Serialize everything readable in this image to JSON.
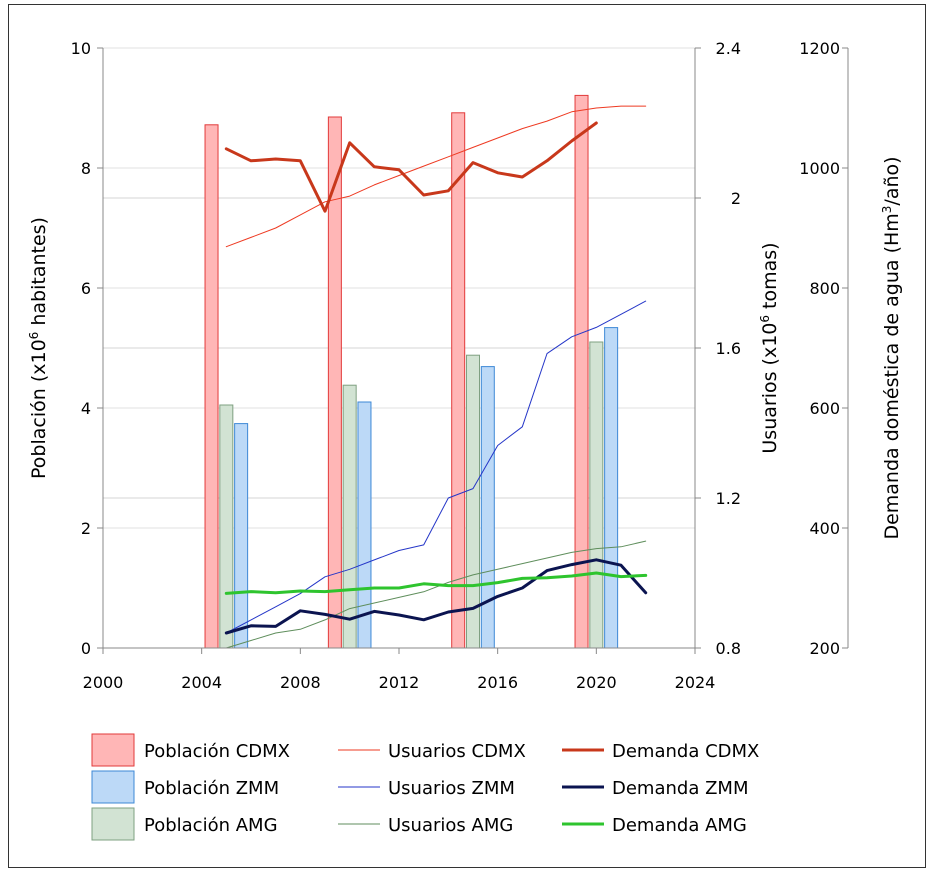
{
  "chart_data": {
    "type": "bar+line",
    "title": "",
    "xlabel": "",
    "x_ticks": [
      "2000",
      "2004",
      "2008",
      "2012",
      "2016",
      "2020",
      "2024"
    ],
    "xlim": [
      2000,
      2024
    ],
    "axes": {
      "population": {
        "label": "Población (x10⁶ habitantes)",
        "label_parts": [
          "Población (x10",
          "6",
          " habitantes)"
        ],
        "ylim": [
          0,
          10
        ],
        "ticks": [
          "0",
          "2",
          "4",
          "6",
          "8",
          "10"
        ]
      },
      "users": {
        "label": "Usuarios (x10⁶ tomas)",
        "label_parts": [
          "Usuarios (x10",
          "6",
          " tomas)"
        ],
        "ylim": [
          0.8,
          2.4
        ],
        "ticks": [
          "0.8",
          "1.2",
          "1.6",
          "2",
          "2.4"
        ]
      },
      "demand": {
        "label": "Demanda doméstica de agua (Hm³/año)",
        "label_parts": [
          "Demanda doméstica de agua (Hm",
          "3",
          "/año)"
        ],
        "ylim": [
          200,
          1200
        ],
        "ticks": [
          "200",
          "400",
          "600",
          "800",
          "1000",
          "1200"
        ]
      }
    },
    "bar_series": [
      {
        "name": "Población CDMX",
        "color": "#ffb6b6",
        "edge": "#e23a3a",
        "x": [
          2005,
          2010,
          2015,
          2020
        ],
        "values": [
          8.72,
          8.85,
          8.92,
          9.21
        ]
      },
      {
        "name": "Población AMG",
        "color": "#d2e3d3",
        "edge": "#7fa081",
        "x": [
          2005,
          2010,
          2015,
          2020
        ],
        "values": [
          4.05,
          4.38,
          4.88,
          5.1
        ]
      },
      {
        "name": "Población ZMM",
        "color": "#bcd9f7",
        "edge": "#3d88d6",
        "x": [
          2005,
          2010,
          2015,
          2020
        ],
        "values": [
          3.74,
          4.1,
          4.69,
          5.34
        ]
      }
    ],
    "line_series": [
      {
        "name": "Usuarios CDMX",
        "axis": "users",
        "color": "#ee3a22",
        "width": 1,
        "x": [
          2005,
          2006,
          2007,
          2008,
          2009,
          2010,
          2011,
          2012,
          2013,
          2014,
          2015,
          2016,
          2017,
          2018,
          2019,
          2020,
          2021,
          2022
        ],
        "values": [
          1.87,
          1.895,
          1.92,
          1.955,
          1.99,
          2.005,
          2.035,
          2.06,
          2.085,
          2.11,
          2.135,
          2.16,
          2.185,
          2.205,
          2.23,
          2.24,
          2.245,
          2.245
        ]
      },
      {
        "name": "Usuarios ZMM",
        "axis": "users",
        "color": "#2536c8",
        "width": 1,
        "x": [
          2005,
          2006,
          2007,
          2008,
          2009,
          2010,
          2011,
          2012,
          2013,
          2014,
          2015,
          2016,
          2017,
          2018,
          2019,
          2020,
          2021,
          2022
        ],
        "values": [
          0.84,
          0.875,
          0.91,
          0.945,
          0.99,
          1.01,
          1.035,
          1.06,
          1.075,
          1.2,
          1.225,
          1.34,
          1.39,
          1.585,
          1.63,
          1.655,
          1.69,
          1.725
        ]
      },
      {
        "name": "Usuarios AMG",
        "axis": "users",
        "color": "#5f8e5c",
        "width": 1,
        "x": [
          2005,
          2006,
          2007,
          2008,
          2009,
          2010,
          2011,
          2012,
          2013,
          2014,
          2015,
          2016,
          2017,
          2018,
          2019,
          2020,
          2021,
          2022
        ],
        "values": [
          0.8,
          0.82,
          0.84,
          0.85,
          0.875,
          0.905,
          0.92,
          0.935,
          0.95,
          0.975,
          0.995,
          1.01,
          1.025,
          1.04,
          1.055,
          1.065,
          1.07,
          1.085
        ]
      },
      {
        "name": "Demanda CDMX",
        "axis": "demand",
        "color": "#c8381b",
        "width": 3,
        "x": [
          2005,
          2006,
          2007,
          2008,
          2009,
          2010,
          2011,
          2012,
          2013,
          2014,
          2015,
          2016,
          2017,
          2018,
          2019,
          2020
        ],
        "values": [
          1032,
          1012,
          1015,
          1012,
          928,
          1042,
          1002,
          997,
          955,
          962,
          1009,
          992,
          985,
          1012,
          1045,
          1075
        ]
      },
      {
        "name": "Demanda ZMM",
        "axis": "demand",
        "color": "#0b1450",
        "width": 3,
        "x": [
          2005,
          2006,
          2007,
          2008,
          2009,
          2010,
          2011,
          2012,
          2013,
          2014,
          2015,
          2016,
          2017,
          2018,
          2019,
          2020,
          2021,
          2022
        ],
        "values": [
          225,
          237,
          236,
          262,
          256,
          248,
          261,
          255,
          247,
          260,
          266,
          286,
          300,
          329,
          339,
          347,
          338,
          292
        ]
      },
      {
        "name": "Demanda AMG",
        "axis": "demand",
        "color": "#2ec42e",
        "width": 3,
        "x": [
          2005,
          2006,
          2007,
          2008,
          2009,
          2010,
          2011,
          2012,
          2013,
          2014,
          2015,
          2016,
          2017,
          2018,
          2019,
          2020,
          2021,
          2022
        ],
        "values": [
          291,
          294,
          292,
          295,
          294,
          297,
          300,
          300,
          307,
          304,
          304,
          309,
          316,
          317,
          320,
          325,
          319,
          321
        ]
      }
    ],
    "legend": {
      "placement": "bottom",
      "rows": [
        [
          "Población CDMX",
          "Usuarios CDMX",
          "Demanda CDMX"
        ],
        [
          "Población ZMM",
          "Usuarios ZMM",
          "Demanda ZMM"
        ],
        [
          "Población AMG",
          "Usuarios AMG",
          "Demanda AMG"
        ]
      ]
    }
  }
}
